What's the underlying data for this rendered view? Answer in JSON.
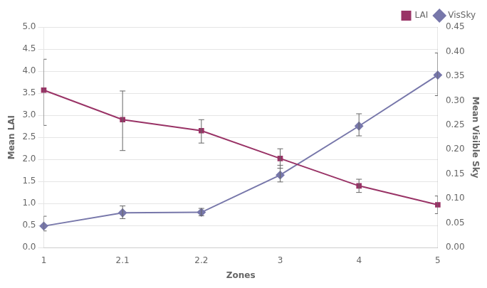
{
  "chart_data": {
    "type": "line",
    "categories": [
      "1",
      "2.1",
      "2.2",
      "3",
      "4",
      "5"
    ],
    "xlabel": "Zones",
    "ylabel": "Mean LAI",
    "y2label": "Mean Visible Sky",
    "series": [
      {
        "name": "LAI",
        "color": "#993366",
        "marker": "square",
        "values": [
          3.57,
          2.9,
          2.65,
          2.02,
          1.4,
          0.97
        ],
        "yerr_lower": [
          0.8,
          0.7,
          0.28,
          0.22,
          0.15,
          0.2
        ],
        "yerr_upper": [
          0.7,
          0.65,
          0.25,
          0.22,
          0.15,
          0.2
        ]
      },
      {
        "name": "VisSky",
        "color": "#7777aa",
        "marker": "diamond",
        "axis": "y2",
        "values": [
          0.044,
          0.071,
          0.072,
          0.148,
          0.248,
          0.352
        ],
        "yerr_lower": [
          0.01,
          0.012,
          0.007,
          0.014,
          0.02,
          0.042
        ],
        "yerr_upper": [
          0.02,
          0.014,
          0.008,
          0.02,
          0.025,
          0.045
        ]
      }
    ],
    "ylim": [
      0,
      5
    ],
    "yticks": [
      {
        "value": 0,
        "label": "0.0"
      },
      0.5,
      {
        "value": 1.0,
        "label": "1.0"
      },
      1.5,
      {
        "value": 2.0,
        "label": "2.0"
      },
      2.5,
      {
        "value": 3.0,
        "label": "3.0"
      },
      3.5,
      {
        "value": 4.0,
        "label": "4.0"
      },
      4.5,
      {
        "value": 5.0,
        "label": "5.0"
      }
    ],
    "y2lim": [
      0,
      0.45
    ],
    "y2ticks": [
      {
        "value": 0,
        "label": "0.00"
      },
      0.05,
      {
        "value": 0.1,
        "label": "0.10"
      },
      0.15,
      {
        "value": 0.2,
        "label": "0.20"
      },
      0.25,
      {
        "value": 0.3,
        "label": "0.30"
      },
      0.35,
      {
        "value": 0.4,
        "label": "0.40"
      },
      0.45
    ],
    "grid": true,
    "legend": "upper right"
  }
}
